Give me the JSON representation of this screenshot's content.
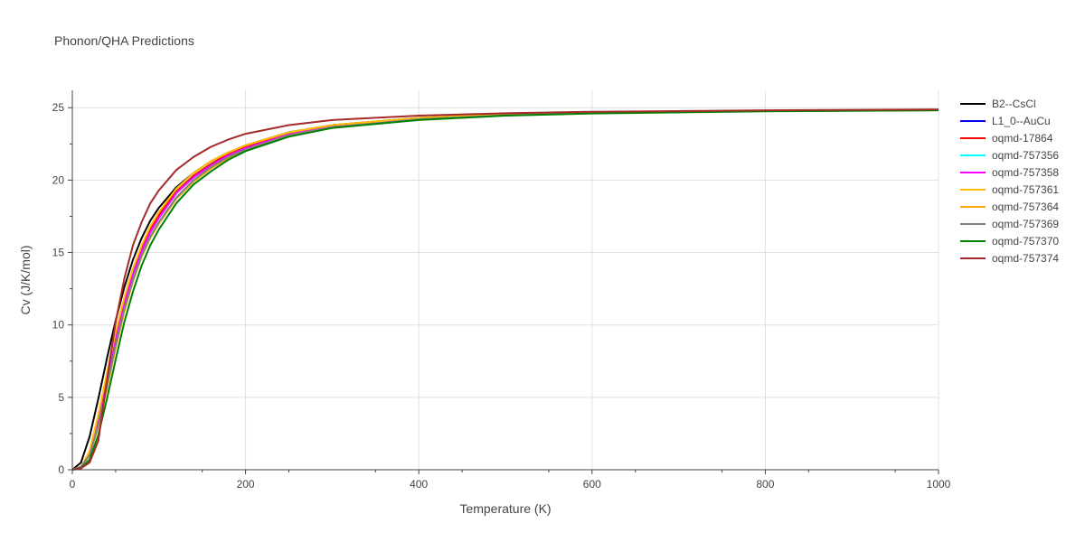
{
  "chart_data": {
    "type": "line",
    "title": "Phonon/QHA Predictions",
    "xlabel": "Temperature (K)",
    "ylabel": "Cv (J/K/mol)",
    "xlim": [
      0,
      1000
    ],
    "ylim": [
      0,
      26.2
    ],
    "xticks": [
      0,
      200,
      400,
      600,
      800,
      1000
    ],
    "yticks": [
      0,
      5,
      10,
      15,
      20,
      25
    ],
    "grid": true,
    "legend_position": "right",
    "series": [
      {
        "name": "B2--CsCl",
        "color": "#000000",
        "x": [
          0,
          10,
          20,
          30,
          40,
          50,
          60,
          70,
          80,
          90,
          100,
          120,
          140,
          160,
          180,
          200,
          250,
          300,
          400,
          500,
          600,
          800,
          1000
        ],
        "y": [
          0,
          0.5,
          2.3,
          4.9,
          7.7,
          10.3,
          12.6,
          14.5,
          16.0,
          17.2,
          18.1,
          19.5,
          20.5,
          21.3,
          21.9,
          22.4,
          23.3,
          23.8,
          24.3,
          24.55,
          24.68,
          24.8,
          24.85
        ]
      },
      {
        "name": "L1_0--AuCu",
        "color": "#0000ff",
        "x": [
          0,
          10,
          20,
          30,
          40,
          50,
          60,
          70,
          80,
          90,
          100,
          120,
          140,
          160,
          180,
          200,
          250,
          300,
          400,
          500,
          600,
          800,
          1000
        ],
        "y": [
          0,
          0.2,
          1.2,
          3.6,
          6.4,
          9.2,
          11.7,
          13.7,
          15.3,
          16.6,
          17.6,
          19.2,
          20.3,
          21.1,
          21.8,
          22.3,
          23.2,
          23.7,
          24.25,
          24.52,
          24.66,
          24.79,
          24.85
        ]
      },
      {
        "name": "oqmd-17864",
        "color": "#ff0000",
        "x": [
          0,
          10,
          20,
          30,
          40,
          50,
          60,
          70,
          80,
          90,
          100,
          120,
          140,
          160,
          180,
          200,
          250,
          300,
          400,
          500,
          600,
          800,
          1000
        ],
        "y": [
          0,
          0.2,
          1.2,
          3.6,
          6.4,
          9.2,
          11.7,
          13.7,
          15.3,
          16.6,
          17.6,
          19.2,
          20.3,
          21.1,
          21.8,
          22.3,
          23.2,
          23.7,
          24.25,
          24.52,
          24.66,
          24.79,
          24.85
        ]
      },
      {
        "name": "oqmd-757356",
        "color": "#00ffff",
        "x": [
          0,
          10,
          20,
          30,
          40,
          50,
          60,
          70,
          80,
          90,
          100,
          120,
          140,
          160,
          180,
          200,
          250,
          300,
          400,
          500,
          600,
          800,
          1000
        ],
        "y": [
          0,
          0.2,
          1.1,
          3.4,
          6.2,
          9.0,
          11.5,
          13.5,
          15.1,
          16.4,
          17.4,
          19.1,
          20.2,
          21.0,
          21.7,
          22.2,
          23.15,
          23.7,
          24.22,
          24.5,
          24.65,
          24.78,
          24.84
        ]
      },
      {
        "name": "oqmd-757358",
        "color": "#ff00ff",
        "x": [
          0,
          10,
          20,
          30,
          40,
          50,
          60,
          70,
          80,
          90,
          100,
          120,
          140,
          160,
          180,
          200,
          250,
          300,
          400,
          500,
          600,
          800,
          1000
        ],
        "y": [
          0,
          0.2,
          1.1,
          3.4,
          6.2,
          9.0,
          11.5,
          13.5,
          15.1,
          16.4,
          17.4,
          19.1,
          20.2,
          21.0,
          21.7,
          22.2,
          23.15,
          23.7,
          24.22,
          24.5,
          24.65,
          24.78,
          24.84
        ]
      },
      {
        "name": "oqmd-757361",
        "color": "#ffbf00",
        "x": [
          0,
          10,
          20,
          30,
          40,
          50,
          60,
          70,
          80,
          90,
          100,
          120,
          140,
          160,
          180,
          200,
          250,
          300,
          400,
          500,
          600,
          800,
          1000
        ],
        "y": [
          0,
          0.2,
          1.3,
          3.8,
          6.7,
          9.5,
          11.9,
          13.9,
          15.5,
          16.8,
          17.8,
          19.4,
          20.5,
          21.3,
          21.9,
          22.4,
          23.3,
          23.8,
          24.3,
          24.55,
          24.68,
          24.8,
          24.85
        ]
      },
      {
        "name": "oqmd-757364",
        "color": "#ffa500",
        "x": [
          0,
          10,
          20,
          30,
          40,
          50,
          60,
          70,
          80,
          90,
          100,
          120,
          140,
          160,
          180,
          200,
          250,
          300,
          400,
          500,
          600,
          800,
          1000
        ],
        "y": [
          0,
          0.2,
          1.0,
          3.0,
          5.6,
          8.4,
          10.9,
          13.0,
          14.7,
          16.0,
          17.0,
          18.7,
          19.9,
          20.8,
          21.5,
          22.1,
          23.1,
          23.65,
          24.2,
          24.48,
          24.63,
          24.77,
          24.83
        ]
      },
      {
        "name": "oqmd-757369",
        "color": "#808080",
        "x": [
          0,
          10,
          20,
          30,
          40,
          50,
          60,
          70,
          80,
          90,
          100,
          120,
          140,
          160,
          180,
          200,
          250,
          300,
          400,
          500,
          600,
          800,
          1000
        ],
        "y": [
          0,
          0.2,
          1.0,
          3.1,
          5.8,
          8.6,
          11.1,
          13.1,
          14.8,
          16.1,
          17.1,
          18.8,
          20.0,
          20.9,
          21.6,
          22.1,
          23.1,
          23.65,
          24.2,
          24.48,
          24.63,
          24.77,
          24.83
        ]
      },
      {
        "name": "oqmd-757370",
        "color": "#008000",
        "x": [
          0,
          10,
          20,
          30,
          40,
          50,
          60,
          70,
          80,
          90,
          100,
          120,
          140,
          160,
          180,
          200,
          250,
          300,
          400,
          500,
          600,
          800,
          1000
        ],
        "y": [
          0,
          0.1,
          0.7,
          2.4,
          4.9,
          7.6,
          10.2,
          12.3,
          14.1,
          15.5,
          16.6,
          18.4,
          19.7,
          20.6,
          21.4,
          22.0,
          23.0,
          23.6,
          24.15,
          24.45,
          24.6,
          24.75,
          24.82
        ]
      },
      {
        "name": "oqmd-757374",
        "color": "#a52a2a",
        "x": [
          0,
          10,
          20,
          30,
          40,
          50,
          60,
          70,
          80,
          90,
          100,
          120,
          140,
          160,
          180,
          200,
          250,
          300,
          400,
          500,
          600,
          800,
          1000
        ],
        "y": [
          0,
          0.1,
          0.5,
          2.0,
          6.2,
          10.2,
          13.2,
          15.5,
          17.1,
          18.4,
          19.3,
          20.7,
          21.6,
          22.3,
          22.8,
          23.2,
          23.8,
          24.15,
          24.45,
          24.62,
          24.72,
          24.82,
          24.88
        ]
      }
    ]
  }
}
